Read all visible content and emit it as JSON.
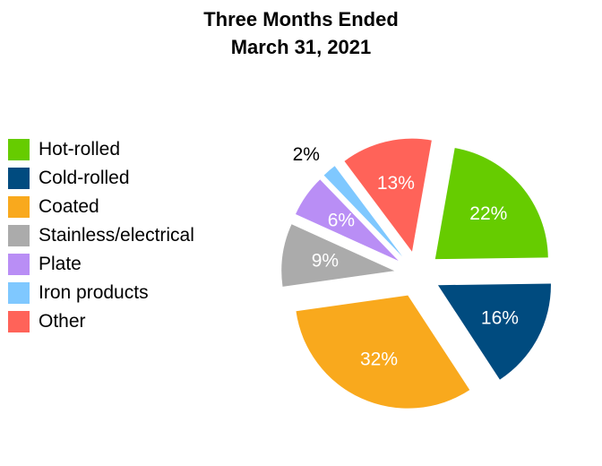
{
  "chart_data": {
    "type": "pie",
    "title_line1": "Three Months Ended",
    "title_line2": "March 31, 2021",
    "legend_position": "left",
    "exploded": true,
    "slices": [
      {
        "name": "Hot-rolled",
        "value": 22,
        "label": "22%",
        "color": "#66cc00",
        "label_color": "#ffffff"
      },
      {
        "name": "Cold-rolled",
        "value": 16,
        "label": "16%",
        "color": "#004b7f",
        "label_color": "#ffffff"
      },
      {
        "name": "Coated",
        "value": 32,
        "label": "32%",
        "color": "#f9a91d",
        "label_color": "#ffffff"
      },
      {
        "name": "Stainless/electrical",
        "value": 9,
        "label": "9%",
        "color": "#ababab",
        "label_color": "#ffffff"
      },
      {
        "name": "Plate",
        "value": 6,
        "label": "6%",
        "color": "#b98ef5",
        "label_color": "#ffffff"
      },
      {
        "name": "Iron products",
        "value": 2,
        "label": "2%",
        "color": "#7fc8ff",
        "label_color": "#000000"
      },
      {
        "name": "Other",
        "value": 13,
        "label": "13%",
        "color": "#ff6359",
        "label_color": "#ffffff"
      }
    ]
  }
}
